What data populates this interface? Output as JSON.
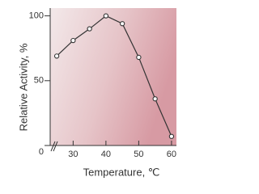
{
  "chart_data": {
    "type": "line",
    "xlabel": "Temperature, ℃",
    "ylabel": "Relative Activity, %",
    "x": [
      25,
      30,
      35,
      40,
      45,
      50,
      55,
      60
    ],
    "series": [
      {
        "name": "Relative Activity",
        "color": "#333333",
        "values": [
          69,
          81,
          90,
          100,
          94,
          68,
          36,
          7
        ]
      }
    ],
    "xlim": [
      23,
      61.5
    ],
    "xticks": [
      30,
      40,
      50,
      60
    ],
    "ylim": [
      0,
      106
    ],
    "yticks": [
      0,
      50,
      100
    ]
  }
}
